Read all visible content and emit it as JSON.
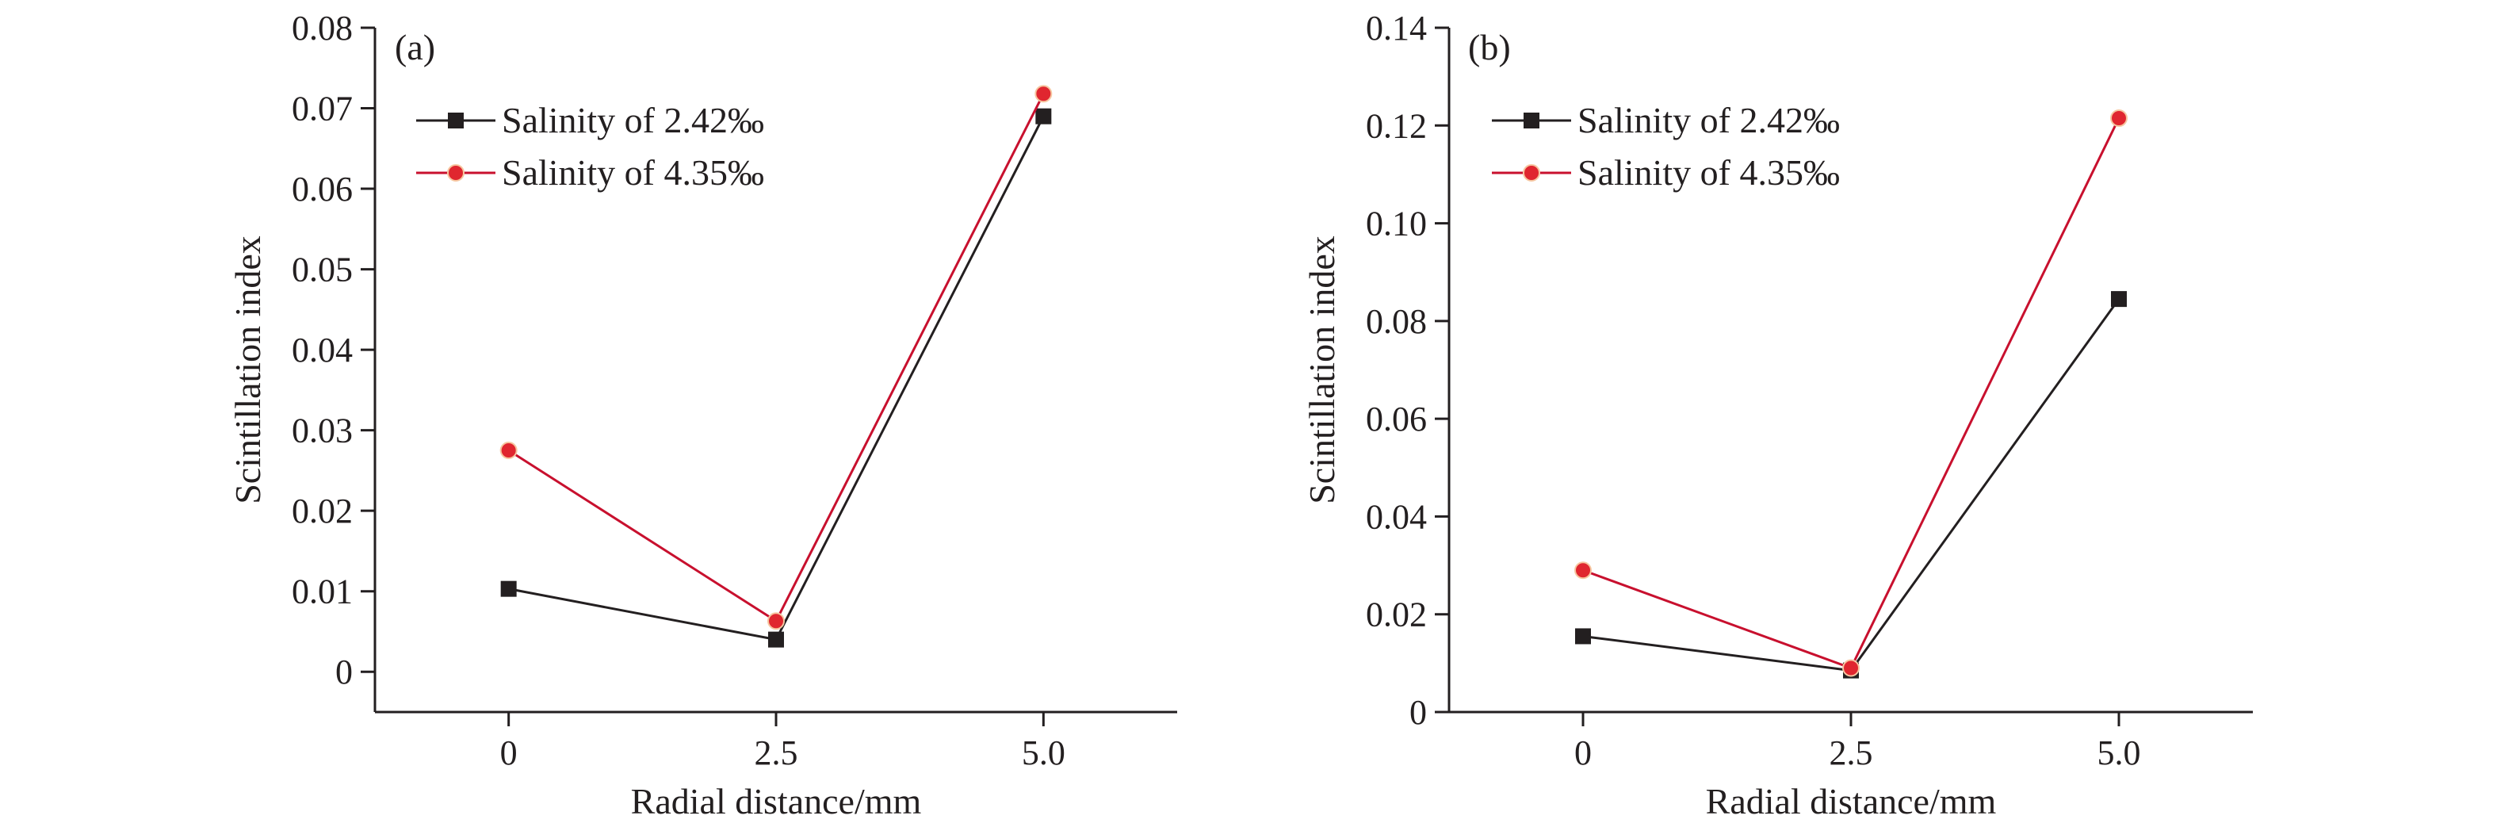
{
  "chart_data": [
    {
      "type": "line",
      "panel_label": "(a)",
      "xlabel": "Radial distance/mm",
      "ylabel": "Scintillation index",
      "categories": [
        "0",
        "2.5",
        "5.0"
      ],
      "x": [
        0,
        2.5,
        5.0
      ],
      "xlim": [
        -1.25,
        6.25
      ],
      "ylim": [
        -0.005,
        0.08
      ],
      "yticks": [
        0,
        0.01,
        0.02,
        0.03,
        0.04,
        0.05,
        0.06,
        0.07,
        0.08
      ],
      "ytick_labels": [
        "0",
        "0.01",
        "0.02",
        "0.03",
        "0.04",
        "0.05",
        "0.06",
        "0.07",
        "0.08"
      ],
      "grid": false,
      "legend_position": "top-left",
      "series": [
        {
          "name": "Salinity of 2.42‰",
          "marker": "square",
          "color": "#231f20",
          "values": [
            0.0103,
            0.004,
            0.069
          ]
        },
        {
          "name": "Salinity of 4.35‰",
          "marker": "circle",
          "color": "#c8102e",
          "values": [
            0.0275,
            0.0063,
            0.0718
          ]
        }
      ]
    },
    {
      "type": "line",
      "panel_label": "(b)",
      "xlabel": "Radial distance/mm",
      "ylabel": "Scintillation index",
      "categories": [
        "0",
        "2.5",
        "5.0"
      ],
      "x": [
        0,
        2.5,
        5.0
      ],
      "xlim": [
        -1.25,
        6.25
      ],
      "ylim": [
        0,
        0.14
      ],
      "yticks": [
        0,
        0.02,
        0.04,
        0.06,
        0.08,
        0.1,
        0.12,
        0.14
      ],
      "ytick_labels": [
        "0",
        "0.02",
        "0.04",
        "0.06",
        "0.08",
        "0.10",
        "0.12",
        "0.14"
      ],
      "grid": false,
      "legend_position": "top-left",
      "series": [
        {
          "name": "Salinity of 2.42‰",
          "marker": "square",
          "color": "#231f20",
          "values": [
            0.0155,
            0.0085,
            0.0845
          ]
        },
        {
          "name": "Salinity of 4.35‰",
          "marker": "circle",
          "color": "#c8102e",
          "values": [
            0.029,
            0.009,
            0.1215
          ]
        }
      ]
    }
  ]
}
